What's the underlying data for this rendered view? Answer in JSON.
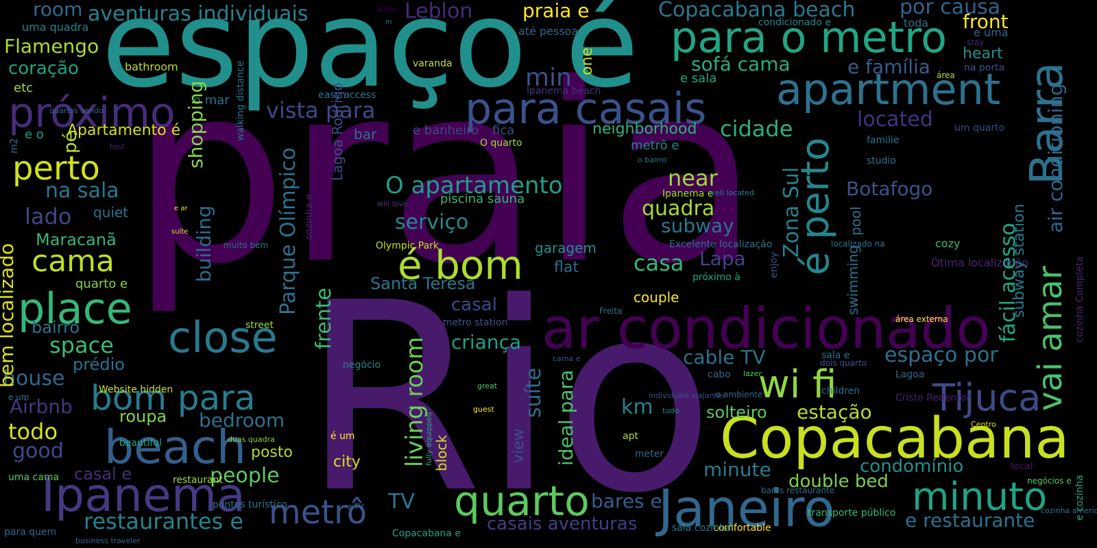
{
  "colors": {
    "background": "#000000",
    "palette_viridis": [
      "#440154",
      "#482677",
      "#404788",
      "#33638d",
      "#287d8e",
      "#1f968b",
      "#29af7f",
      "#55c667",
      "#95d840",
      "#dce319"
    ]
  },
  "words": [
    {
      "text": "praia",
      "color": "#440154"
    },
    {
      "text": "Rio",
      "color": "#481a6c"
    },
    {
      "text": "espaço é",
      "color": "#21908d"
    },
    {
      "text": "ar condicionado",
      "color": "#440154"
    },
    {
      "text": "Copacabana",
      "color": "#c8e020"
    },
    {
      "text": "apartment",
      "color": "#2c728e"
    },
    {
      "text": "para casais",
      "color": "#3b518b"
    },
    {
      "text": "para o metro",
      "color": "#21a685"
    },
    {
      "text": "Barra",
      "color": "#2c728e"
    },
    {
      "text": "próximo",
      "color": "#472c7a"
    },
    {
      "text": "Janeiro",
      "color": "#31688e"
    },
    {
      "text": "Ipanema",
      "color": "#443983"
    },
    {
      "text": "beach",
      "color": "#355f8d"
    },
    {
      "text": "close",
      "color": "#2a788e"
    },
    {
      "text": "place",
      "color": "#35b779"
    },
    {
      "text": "quarto",
      "color": "#5ec962"
    },
    {
      "text": "é bom",
      "color": "#addc30"
    },
    {
      "text": "bom para",
      "color": "#287c8e"
    },
    {
      "text": "wi fi",
      "color": "#90d743"
    },
    {
      "text": "minuto",
      "color": "#20a386"
    },
    {
      "text": "Tijuca",
      "color": "#3e4a89"
    },
    {
      "text": "é perto",
      "color": "#24878e"
    },
    {
      "text": "vai amar",
      "color": "#4ac16d"
    },
    {
      "text": "metrô",
      "color": "#3b528b"
    },
    {
      "text": "perto",
      "color": "#d2e21b"
    },
    {
      "text": "cama",
      "color": "#c2df23"
    },
    {
      "text": "restaurantes e",
      "color": "#25848e"
    },
    {
      "text": "O apartamento",
      "color": "#1f9f88"
    },
    {
      "text": "located",
      "color": "#46327e"
    },
    {
      "text": "aventuras individuais",
      "color": "#26828e"
    },
    {
      "text": "Copacabana beach",
      "color": "#2a788e"
    },
    {
      "text": "por causa",
      "color": "#33638d"
    },
    {
      "text": "vista para",
      "color": "#3e4a89"
    },
    {
      "text": "cidade",
      "color": "#29af7f"
    },
    {
      "text": "Leblon",
      "color": "#472a7a"
    },
    {
      "text": "praia e",
      "color": "#fde725"
    },
    {
      "text": "front",
      "color": "#fde725"
    },
    {
      "text": "sofá cama",
      "color": "#27ad81"
    },
    {
      "text": "e família",
      "color": "#365c8d"
    },
    {
      "text": "min",
      "color": "#3b528b"
    },
    {
      "text": "room",
      "color": "#31688e"
    },
    {
      "text": "Flamengo",
      "color": "#addc30"
    },
    {
      "text": "coração",
      "color": "#1fa187"
    },
    {
      "text": "heart",
      "color": "#21908d"
    },
    {
      "text": "e sala",
      "color": "#22a884"
    },
    {
      "text": "air conditioning",
      "color": "#31688e"
    },
    {
      "text": "Parque Olímpico",
      "color": "#2c728e"
    },
    {
      "text": "Zona Sul",
      "color": "#26828e"
    },
    {
      "text": "fácil acesso",
      "color": "#22a884"
    },
    {
      "text": "espaço por",
      "color": "#2d718e"
    },
    {
      "text": "e restaurante",
      "color": "#2c728e"
    },
    {
      "text": "Botafogo",
      "color": "#3b528b"
    },
    {
      "text": "quadra",
      "color": "#a5db36"
    },
    {
      "text": "subway",
      "color": "#2a788e"
    },
    {
      "text": "building",
      "color": "#2f6c8e"
    },
    {
      "text": "serviço",
      "color": "#23898e"
    },
    {
      "text": "near",
      "color": "#9fda3a"
    },
    {
      "text": "bem localizado",
      "color": "#dde318"
    },
    {
      "text": "Maracanã",
      "color": "#35b779"
    },
    {
      "text": "lado",
      "color": "#404688"
    },
    {
      "text": "na sala",
      "color": "#2a788e"
    },
    {
      "text": "neighborhood",
      "color": "#2eb37c"
    },
    {
      "text": "Apartamento é",
      "color": "#d8e219"
    },
    {
      "text": "living room",
      "color": "#6ece58"
    },
    {
      "text": "frente",
      "color": "#3dbc74"
    },
    {
      "text": "suíte",
      "color": "#2f6c8e"
    },
    {
      "text": "ideal para",
      "color": "#4ac16d"
    },
    {
      "text": "shopping",
      "color": "#86d549"
    },
    {
      "text": "space",
      "color": "#3bbb75"
    },
    {
      "text": "bairro",
      "color": "#2c728e"
    },
    {
      "text": "house",
      "color": "#31688e"
    },
    {
      "text": "Airbnb",
      "color": "#453781"
    },
    {
      "text": "todo",
      "color": "#d8e219"
    },
    {
      "text": "good",
      "color": "#3e4989"
    },
    {
      "text": "casa",
      "color": "#35b779"
    },
    {
      "text": "Lapa",
      "color": "#414487"
    },
    {
      "text": "cable TV",
      "color": "#2c728e"
    },
    {
      "text": "estação",
      "color": "#b5de2b"
    },
    {
      "text": "solteiro",
      "color": "#5ec962"
    },
    {
      "text": "condomínio",
      "color": "#21918c"
    },
    {
      "text": "double bed",
      "color": "#7ad151"
    },
    {
      "text": "minute",
      "color": "#287c8e"
    },
    {
      "text": "bares e",
      "color": "#355f8d"
    },
    {
      "text": "casais aventuras",
      "color": "#433e85"
    },
    {
      "text": "criança",
      "color": "#1fa187"
    },
    {
      "text": "Santa Teresa",
      "color": "#2a788e"
    },
    {
      "text": "casal",
      "color": "#3e4a89"
    },
    {
      "text": "km",
      "color": "#26828e"
    },
    {
      "text": "bedroom",
      "color": "#2d708e"
    },
    {
      "text": "roupa",
      "color": "#84d44b"
    },
    {
      "text": "people",
      "color": "#5ec962"
    },
    {
      "text": "posto",
      "color": "#addc30"
    },
    {
      "text": "casal e",
      "color": "#472d7b"
    },
    {
      "text": "TV",
      "color": "#2a788e"
    },
    {
      "text": "city",
      "color": "#d5e21a"
    },
    {
      "text": "prédio",
      "color": "#2c728e"
    },
    {
      "text": "piscina sauna",
      "color": "#37b878"
    },
    {
      "text": "metrô e",
      "color": "#25848e"
    },
    {
      "text": "garagem",
      "color": "#21918c"
    },
    {
      "text": "flat",
      "color": "#2f6c8e"
    },
    {
      "text": "couple",
      "color": "#fde725"
    },
    {
      "text": "view",
      "color": "#3b528b"
    },
    {
      "text": "quiet",
      "color": "#2c728e"
    },
    {
      "text": "etc",
      "color": "#a5db36"
    },
    {
      "text": "pé",
      "color": "#c0df25"
    },
    {
      "text": "e o",
      "color": "#1f9e89"
    },
    {
      "text": "m2",
      "color": "#2e6f8e"
    },
    {
      "text": "uma quadra",
      "color": "#26828e"
    },
    {
      "text": "bathroom",
      "color": "#bddf26"
    },
    {
      "text": "o mar",
      "color": "#2c728e"
    },
    {
      "text": "varanda",
      "color": "#cae11f"
    },
    {
      "text": "easy access",
      "color": "#2a788e"
    },
    {
      "text": "até pessoa",
      "color": "#31688e"
    },
    {
      "text": "one",
      "color": "#cae11f"
    },
    {
      "text": "condicionado e",
      "color": "#24878e"
    },
    {
      "text": "toda",
      "color": "#2c728e"
    },
    {
      "text": "e uma",
      "color": "#31688e"
    },
    {
      "text": "stay",
      "color": "#472d7b"
    },
    {
      "text": "na porta",
      "color": "#3b528b"
    },
    {
      "text": "área",
      "color": "#bddf26"
    },
    {
      "text": "Ipanema beach",
      "color": "#46327e"
    },
    {
      "text": "um quarto",
      "color": "#3e4989"
    },
    {
      "text": "familie",
      "color": "#2a788e"
    },
    {
      "text": "studio",
      "color": "#2c728e"
    },
    {
      "text": "pool",
      "color": "#2d708e"
    },
    {
      "text": "swimming",
      "color": "#2c728e"
    },
    {
      "text": "subway station",
      "color": "#2a788e"
    },
    {
      "text": "next",
      "color": "#35b779"
    },
    {
      "text": "cozy",
      "color": "#3bbb75"
    },
    {
      "text": "Ótima localização",
      "color": "#482677"
    },
    {
      "text": "cozinha Completa",
      "color": "#482677"
    },
    {
      "text": "e cozinha",
      "color": "#22a884"
    },
    {
      "text": "negócios e",
      "color": "#5ec962"
    },
    {
      "text": "local",
      "color": "#48186a"
    },
    {
      "text": "cozinha americana",
      "color": "#2c728e"
    },
    {
      "text": "Centro",
      "color": "#d8e219"
    },
    {
      "text": "Cristo Redentor",
      "color": "#482173"
    },
    {
      "text": "Lagoa",
      "color": "#31688e"
    },
    {
      "text": "children",
      "color": "#2c728e"
    },
    {
      "text": "o ambiente",
      "color": "#31688e"
    },
    {
      "text": "área externa",
      "color": "#fde725"
    },
    {
      "text": "dois quarto",
      "color": "#3b528b"
    },
    {
      "text": "sala e",
      "color": "#2c728e"
    },
    {
      "text": "cabo",
      "color": "#31688e"
    },
    {
      "text": "lazer",
      "color": "#5ec962"
    },
    {
      "text": "transporte público",
      "color": "#37b878"
    },
    {
      "text": "comfortable",
      "color": "#fde725"
    },
    {
      "text": "sala cozinha",
      "color": "#2a788e"
    },
    {
      "text": "bares restaurante",
      "color": "#2f6c8e"
    },
    {
      "text": "enjoy",
      "color": "#3b528b"
    },
    {
      "text": "localizado na",
      "color": "#2a788e"
    },
    {
      "text": "próximo à",
      "color": "#21a685"
    },
    {
      "text": "Excelente localização",
      "color": "#2c728e"
    },
    {
      "text": "Freita",
      "color": "#2a788e"
    },
    {
      "text": "Ipanema e",
      "color": "#addc30"
    },
    {
      "text": "well located",
      "color": "#26828e"
    },
    {
      "text": "o bairro",
      "color": "#2a788e"
    },
    {
      "text": "apt",
      "color": "#addc30"
    },
    {
      "text": "meter",
      "color": "#31688e"
    },
    {
      "text": "tudo",
      "color": "#24878e"
    },
    {
      "text": "individuais viajantes",
      "color": "#3b528b"
    },
    {
      "text": "cama e",
      "color": "#3b528b"
    },
    {
      "text": "e banheiro",
      "color": "#3e4a89"
    },
    {
      "text": "fica",
      "color": "#3b528b"
    },
    {
      "text": "O quarto",
      "color": "#a5db36"
    },
    {
      "text": "metro station",
      "color": "#3b528b"
    },
    {
      "text": "Olympic Park",
      "color": "#cae11f"
    },
    {
      "text": "will love",
      "color": "#46327e"
    },
    {
      "text": "cozinha e",
      "color": "#482173"
    },
    {
      "text": "Lagoa Rodrigo",
      "color": "#3e4a89"
    },
    {
      "text": "block",
      "color": "#d2e21b"
    },
    {
      "text": "great",
      "color": "#5ec962"
    },
    {
      "text": "guest",
      "color": "#fde725"
    },
    {
      "text": "fully equipped",
      "color": "#29af7f"
    },
    {
      "text": "é um",
      "color": "#fde725"
    },
    {
      "text": "negócio",
      "color": "#24878e"
    },
    {
      "text": "Copacabana e",
      "color": "#1fa187"
    },
    {
      "text": "e TV",
      "color": "#2c728e"
    },
    {
      "text": "pontos turístico",
      "color": "#2c728e"
    },
    {
      "text": "business traveler",
      "color": "#31688e"
    },
    {
      "text": "para quem",
      "color": "#31688e"
    },
    {
      "text": "restaurant",
      "color": "#a5db36"
    },
    {
      "text": "uma cama",
      "color": "#5ec962"
    },
    {
      "text": "beautiful",
      "color": "#22a884"
    },
    {
      "text": "duas quadra",
      "color": "#86d549"
    },
    {
      "text": "Website hidden",
      "color": "#c8e020"
    },
    {
      "text": "e um",
      "color": "#2c728e"
    },
    {
      "text": "street",
      "color": "#9fda3a"
    },
    {
      "text": "muito bem",
      "color": "#2c728e"
    },
    {
      "text": "e ar",
      "color": "#fde725"
    },
    {
      "text": "suíte",
      "color": "#cae11f"
    },
    {
      "text": "walking distance",
      "color": "#2c728e"
    },
    {
      "text": "area",
      "color": "#440154"
    },
    {
      "text": "bar",
      "color": "#2c728e"
    },
    {
      "text": "best",
      "color": "#482677"
    },
    {
      "text": "quarto e",
      "color": "#84d44b"
    },
    {
      "text": "quartos sendo",
      "color": "#31688e"
    },
    {
      "text": "além",
      "color": "#440154"
    },
    {
      "text": "m",
      "color": "#2c728e"
    }
  ]
}
